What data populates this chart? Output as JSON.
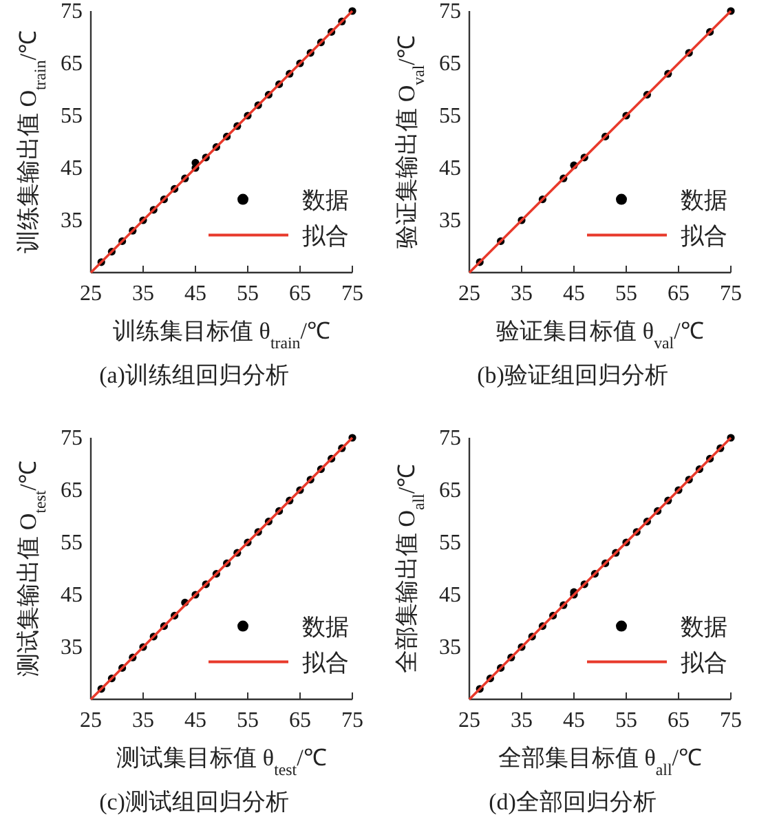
{
  "chart_data": [
    {
      "type": "scatter",
      "title": "(a)训练组回归分析",
      "xlabel": "训练集目标值 θ$_{train}$/℃",
      "ylabel": "训练集输出值 O$_{train}$/℃",
      "xlim": [
        25,
        75
      ],
      "ylim": [
        25,
        75
      ],
      "xticks": [
        25,
        35,
        45,
        55,
        65,
        75
      ],
      "yticks": [
        35,
        45,
        55,
        65,
        75
      ],
      "legend": "bottom right",
      "series": [
        {
          "name": "数据",
          "type": "scatter",
          "marker": "circle",
          "color": "#000000",
          "x": [
            27,
            29,
            31,
            33,
            35,
            37,
            39,
            41,
            43,
            45,
            45,
            47,
            49,
            51,
            53,
            55,
            57,
            59,
            61,
            63,
            65,
            67,
            69,
            71,
            73,
            75
          ],
          "values": [
            27,
            29,
            31,
            33,
            35,
            37,
            39,
            41,
            43,
            45,
            46,
            47,
            49,
            51,
            53,
            55,
            57,
            59,
            61,
            63,
            65,
            67,
            69,
            71,
            73,
            75
          ]
        },
        {
          "name": "拟合",
          "type": "line",
          "color": "#e8392b",
          "x": [
            25,
            75
          ],
          "values": [
            25,
            75
          ]
        }
      ]
    },
    {
      "type": "scatter",
      "title": "(b)验证组回归分析",
      "xlabel": "验证集目标值 θ$_{val}$/℃",
      "ylabel": "验证集输出值 O$_{val}$/℃",
      "xlim": [
        25,
        75
      ],
      "ylim": [
        25,
        75
      ],
      "xticks": [
        25,
        35,
        45,
        55,
        65,
        75
      ],
      "yticks": [
        35,
        45,
        55,
        65,
        75
      ],
      "legend": "bottom right",
      "series": [
        {
          "name": "数据",
          "type": "scatter",
          "marker": "circle",
          "color": "#000000",
          "x": [
            27,
            31,
            35,
            39,
            43,
            45,
            47,
            51,
            55,
            59,
            63,
            67,
            71,
            75
          ],
          "values": [
            27,
            31,
            35,
            39,
            43,
            45.5,
            47,
            51,
            55,
            59,
            63,
            67,
            71,
            75
          ]
        },
        {
          "name": "拟合",
          "type": "line",
          "color": "#e8392b",
          "x": [
            25,
            75
          ],
          "values": [
            25,
            75
          ]
        }
      ]
    },
    {
      "type": "scatter",
      "title": "(c)测试组回归分析",
      "xlabel": "测试集目标值 θ$_{test}$/℃",
      "ylabel": "测试集输出值 O$_{test}$/℃",
      "xlim": [
        25,
        75
      ],
      "ylim": [
        25,
        75
      ],
      "xticks": [
        25,
        35,
        45,
        55,
        65,
        75
      ],
      "yticks": [
        35,
        45,
        55,
        65,
        75
      ],
      "legend": "bottom right",
      "series": [
        {
          "name": "数据",
          "type": "scatter",
          "marker": "circle",
          "color": "#000000",
          "x": [
            27,
            29,
            31,
            33,
            35,
            37,
            39,
            41,
            43,
            45,
            47,
            49,
            51,
            53,
            55,
            57,
            59,
            61,
            63,
            65,
            67,
            69,
            71,
            73,
            75
          ],
          "values": [
            27,
            29,
            31,
            33,
            35,
            37,
            39,
            41,
            43.5,
            45,
            47,
            49,
            51,
            53,
            55,
            57,
            59,
            61,
            63,
            65,
            67,
            69,
            71,
            73,
            75
          ]
        },
        {
          "name": "拟合",
          "type": "line",
          "color": "#e8392b",
          "x": [
            25,
            75
          ],
          "values": [
            25,
            75
          ]
        }
      ]
    },
    {
      "type": "scatter",
      "title": "(d)全部回归分析",
      "xlabel": "全部集目标值 θ$_{all}$/℃",
      "ylabel": "全部集输出值 O$_{all}$/℃",
      "xlim": [
        25,
        75
      ],
      "ylim": [
        25,
        75
      ],
      "xticks": [
        25,
        35,
        45,
        55,
        65,
        75
      ],
      "yticks": [
        35,
        45,
        55,
        65,
        75
      ],
      "legend": "bottom right",
      "series": [
        {
          "name": "数据",
          "type": "scatter",
          "marker": "circle",
          "color": "#000000",
          "x": [
            27,
            29,
            31,
            33,
            35,
            37,
            39,
            41,
            43,
            45,
            45,
            47,
            49,
            51,
            53,
            55,
            57,
            59,
            61,
            63,
            65,
            67,
            69,
            71,
            73,
            75
          ],
          "values": [
            27,
            29,
            31,
            33,
            35,
            37,
            39,
            41,
            43,
            45,
            45.5,
            47,
            49,
            51,
            53,
            55,
            57,
            59,
            61,
            63,
            65,
            67,
            69,
            71,
            73,
            75
          ]
        },
        {
          "name": "拟合",
          "type": "line",
          "color": "#e8392b",
          "x": [
            25,
            75
          ],
          "values": [
            25,
            75
          ]
        }
      ]
    }
  ]
}
